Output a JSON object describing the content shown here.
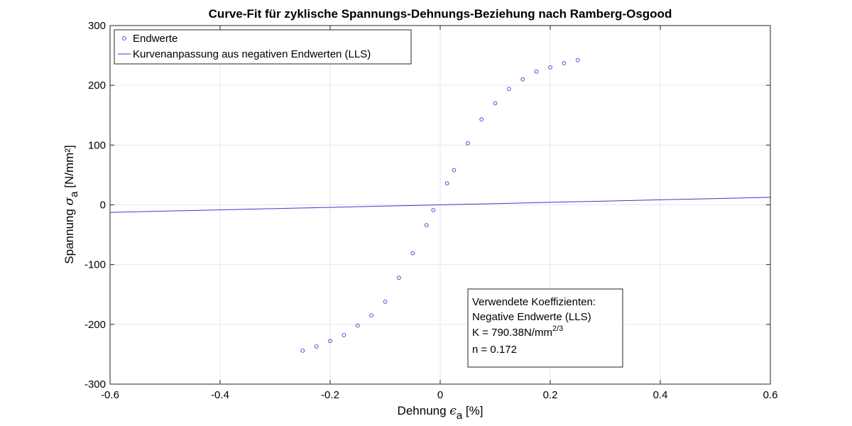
{
  "chart_data": {
    "type": "scatter",
    "title": "Curve-Fit für zyklische Spannungs-Dehnungs-Beziehung nach Ramberg-Osgood",
    "xlabel": {
      "text": "Dehnung ",
      "symbol": "ϵ",
      "sub": "a",
      "unit": "  [%]"
    },
    "ylabel": {
      "text": "Spannung ",
      "symbol": "σ",
      "sub": "a",
      "unit": "  [N/mm²]"
    },
    "xlim": [
      -0.6,
      0.6
    ],
    "ylim": [
      -300,
      300
    ],
    "xticks": [
      -0.6,
      -0.4,
      -0.2,
      0,
      0.2,
      0.4,
      0.6
    ],
    "xtick_labels": [
      "-0.6",
      "-0.4",
      "-0.2",
      "0",
      "0.2",
      "0.4",
      "0.6"
    ],
    "yticks": [
      -300,
      -200,
      -100,
      0,
      100,
      200,
      300
    ],
    "ytick_labels": [
      "-300",
      "-200",
      "-100",
      "0",
      "100",
      "200",
      "300"
    ],
    "grid": true,
    "legend_position": "top-left",
    "colors": {
      "series": "#3a3acf",
      "grid": "#e6e6e6",
      "axis": "#262626"
    },
    "series": [
      {
        "name": "Endwerte",
        "type": "scatter",
        "x": [
          -0.25,
          -0.225,
          -0.2,
          -0.175,
          -0.15,
          -0.125,
          -0.1,
          -0.075,
          -0.05,
          -0.025,
          -0.0125,
          0.0125,
          0.025,
          0.05,
          0.075,
          0.1,
          0.125,
          0.15,
          0.175,
          0.2,
          0.225,
          0.25
        ],
        "y": [
          -244,
          -237,
          -228,
          -218,
          -202,
          -185,
          -162,
          -122,
          -81,
          -34,
          -9,
          36,
          58,
          103,
          143,
          170,
          194,
          210,
          223,
          230,
          237,
          242
        ]
      },
      {
        "name": "Kurvenanpassung aus negativen Endwerten (LLS)",
        "type": "line",
        "model": "ramberg-osgood",
        "E": 2100,
        "K": 790.38,
        "n": 0.172
      }
    ],
    "annotation": {
      "lines": [
        "Verwendete Koeffizienten:",
        "Negative Endwerte (LLS)",
        "K = 790.38N/mm",
        "n = 0.172"
      ],
      "k_exponent": "2/3"
    }
  }
}
